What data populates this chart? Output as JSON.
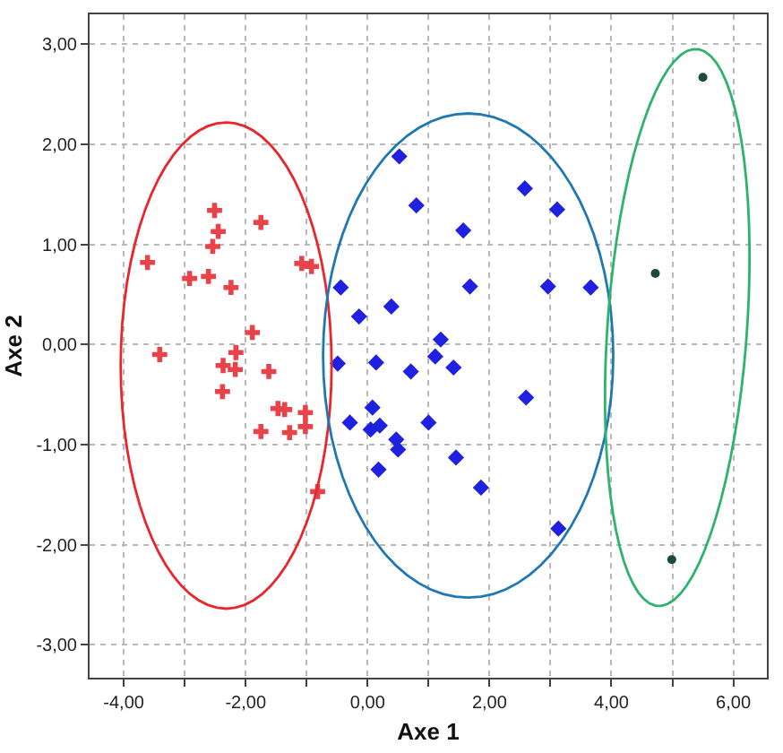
{
  "chart_data": {
    "type": "scatter",
    "xlabel": "Axe 1",
    "ylabel": "Axe 2",
    "xlim": [
      -4.56,
      6.55
    ],
    "ylim": [
      -3.33,
      3.3
    ],
    "xticks": [
      {
        "value": -4,
        "label": "-4,00"
      },
      {
        "value": -3,
        "label": null
      },
      {
        "value": -2,
        "label": "-2,00"
      },
      {
        "value": -1,
        "label": null
      },
      {
        "value": 0,
        "label": "0,00"
      },
      {
        "value": 1,
        "label": null
      },
      {
        "value": 2,
        "label": "2,00"
      },
      {
        "value": 3,
        "label": null
      },
      {
        "value": 4,
        "label": "4,00"
      },
      {
        "value": 5,
        "label": null
      },
      {
        "value": 6,
        "label": "6,00"
      }
    ],
    "yticks": [
      {
        "value": -3,
        "label": "-3,00"
      },
      {
        "value": -2,
        "label": "-2,00"
      },
      {
        "value": -1,
        "label": "-1,00"
      },
      {
        "value": 0,
        "label": "0,00"
      },
      {
        "value": 1,
        "label": "1,00"
      },
      {
        "value": 2,
        "label": "2,00"
      },
      {
        "value": 3,
        "label": "3,00"
      }
    ],
    "grid": true,
    "series": [
      {
        "marker": "cross",
        "color": "#e8434a",
        "x": [
          -3.61,
          -3.41,
          -2.92,
          -2.61,
          -2.54,
          -2.51,
          -2.45,
          -2.24,
          -2.37,
          -2.38,
          -2.16,
          -2.17,
          -1.89,
          -1.75,
          -1.62,
          -1.75,
          -1.47,
          -1.36,
          -1.28,
          -1.08,
          -0.92,
          -1.02,
          -1.02,
          -0.82
        ],
        "values": [
          0.82,
          -0.1,
          0.66,
          0.68,
          0.98,
          1.34,
          1.13,
          0.57,
          -0.21,
          -0.47,
          -0.08,
          -0.25,
          0.12,
          1.22,
          -0.27,
          -0.87,
          -0.64,
          -0.65,
          -0.88,
          0.81,
          0.78,
          -0.68,
          -0.82,
          -1.47
        ]
      },
      {
        "marker": "diamond",
        "color": "#2020e0",
        "x": [
          0.52,
          2.58,
          3.11,
          0.8,
          1.57,
          -0.44,
          1.68,
          2.96,
          3.66,
          0.39,
          -0.14,
          1.2,
          1.11,
          -0.49,
          0.14,
          0.71,
          1.41,
          2.6,
          0.08,
          -0.29,
          0.2,
          0.05,
          1.0,
          0.47,
          0.5,
          0.18,
          1.45,
          1.86,
          3.13
        ],
        "values": [
          1.88,
          1.56,
          1.35,
          1.39,
          1.14,
          0.57,
          0.58,
          0.58,
          0.57,
          0.38,
          0.28,
          0.05,
          -0.12,
          -0.19,
          -0.18,
          -0.27,
          -0.23,
          -0.53,
          -0.63,
          -0.78,
          -0.81,
          -0.85,
          -0.78,
          -0.95,
          -1.05,
          -1.25,
          -1.13,
          -1.43,
          -1.84
        ]
      },
      {
        "marker": "circle",
        "color": "#1c4a3c",
        "x": [
          5.5,
          4.72,
          4.99
        ],
        "values": [
          2.67,
          0.71,
          -2.15
        ]
      }
    ]
  }
}
